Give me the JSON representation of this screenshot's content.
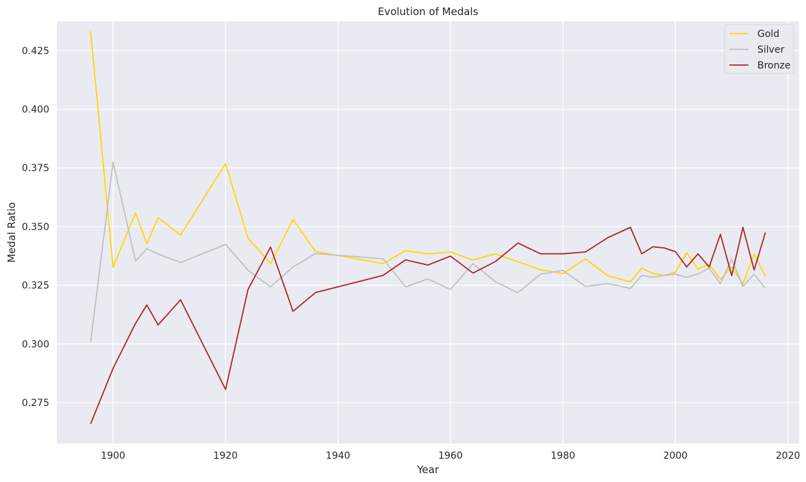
{
  "chart_data": {
    "type": "line",
    "title": "Evolution of Medals",
    "xlabel": "Year",
    "ylabel": "Medal Ratio",
    "xlim": [
      1890,
      2022
    ],
    "ylim": [
      0.2575,
      0.4375
    ],
    "xticks": [
      1900,
      1920,
      1940,
      1960,
      1980,
      2000,
      2020
    ],
    "yticks": [
      0.275,
      0.3,
      0.325,
      0.35,
      0.375,
      0.4,
      0.425
    ],
    "grid": true,
    "legend_position": "top-right",
    "x": [
      1896,
      1900,
      1904,
      1906,
      1908,
      1912,
      1920,
      1924,
      1928,
      1932,
      1936,
      1948,
      1952,
      1956,
      1960,
      1964,
      1968,
      1972,
      1976,
      1980,
      1984,
      1988,
      1992,
      1994,
      1996,
      1998,
      2000,
      2002,
      2004,
      2006,
      2008,
      2010,
      2012,
      2014,
      2016
    ],
    "series": [
      {
        "name": "Gold",
        "color": "#FFD700",
        "values": [
          0.4333,
          0.3327,
          0.3558,
          0.3427,
          0.3537,
          0.3464,
          0.3768,
          0.3451,
          0.3342,
          0.353,
          0.3394,
          0.3342,
          0.3397,
          0.3384,
          0.3392,
          0.3357,
          0.3384,
          0.335,
          0.3316,
          0.33,
          0.3362,
          0.329,
          0.3265,
          0.3324,
          0.33,
          0.3292,
          0.3306,
          0.3388,
          0.3318,
          0.334,
          0.3275,
          0.3328,
          0.3256,
          0.3384,
          0.3288
        ]
      },
      {
        "name": "Silver",
        "color": "#C0C0C0",
        "values": [
          0.3006,
          0.3774,
          0.3353,
          0.3406,
          0.3383,
          0.3347,
          0.3424,
          0.3314,
          0.3243,
          0.3328,
          0.3385,
          0.3363,
          0.3243,
          0.3277,
          0.3232,
          0.3342,
          0.3265,
          0.3218,
          0.3297,
          0.3313,
          0.3245,
          0.3257,
          0.3236,
          0.3292,
          0.3284,
          0.3292,
          0.3298,
          0.3284,
          0.3298,
          0.3323,
          0.3257,
          0.3362,
          0.3245,
          0.3297,
          0.3237
        ]
      },
      {
        "name": "Bronze",
        "color": "#A52A2A",
        "values": [
          0.2659,
          0.2896,
          0.3088,
          0.3166,
          0.3081,
          0.3188,
          0.2806,
          0.3232,
          0.3413,
          0.3139,
          0.3219,
          0.3292,
          0.3358,
          0.3336,
          0.3374,
          0.3302,
          0.3351,
          0.343,
          0.3384,
          0.3384,
          0.3392,
          0.3453,
          0.3497,
          0.3384,
          0.3414,
          0.3409,
          0.3393,
          0.3328,
          0.3384,
          0.3328,
          0.3467,
          0.3291,
          0.3497,
          0.3315,
          0.3475
        ]
      }
    ]
  }
}
